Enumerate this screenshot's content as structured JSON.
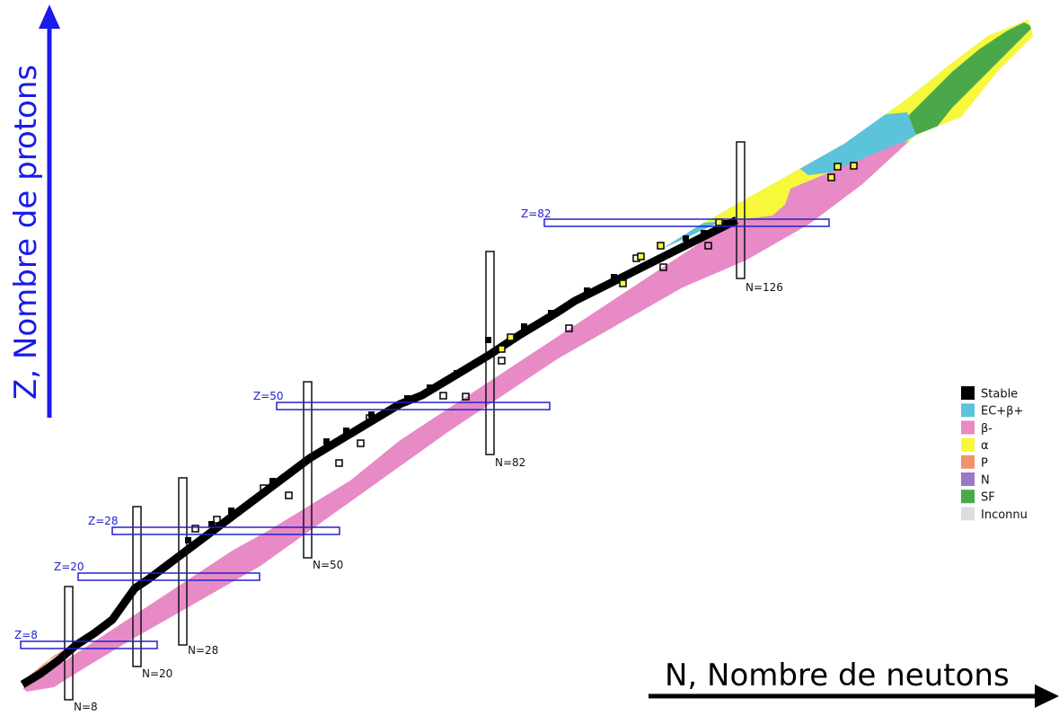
{
  "chart_data": {
    "type": "diagram",
    "x_axis_label": "N, Nombre de neutons",
    "y_axis_label": "Z, Nombre de protons",
    "legend": [
      {
        "label": "Stable",
        "color": "#000000"
      },
      {
        "label": "EC+β+",
        "color": "#5bc3da"
      },
      {
        "label": "β-",
        "color": "#e78ac6"
      },
      {
        "label": "α",
        "color": "#f8f83a"
      },
      {
        "label": "P",
        "color": "#f2926a"
      },
      {
        "label": "N",
        "color": "#9a7ac4"
      },
      {
        "label": "SF",
        "color": "#4aa84a"
      },
      {
        "label": "Inconnu",
        "color": "#dddddd"
      }
    ],
    "legend_position": "right",
    "magic_proton_numbers": [
      {
        "label": "Z=8"
      },
      {
        "label": "Z=20"
      },
      {
        "label": "Z=28"
      },
      {
        "label": "Z=50"
      },
      {
        "label": "Z=82"
      }
    ],
    "magic_neutron_numbers": [
      {
        "label": "N=8"
      },
      {
        "label": "N=20"
      },
      {
        "label": "N=28"
      },
      {
        "label": "N=50"
      },
      {
        "label": "N=82"
      },
      {
        "label": "N=126"
      }
    ]
  }
}
